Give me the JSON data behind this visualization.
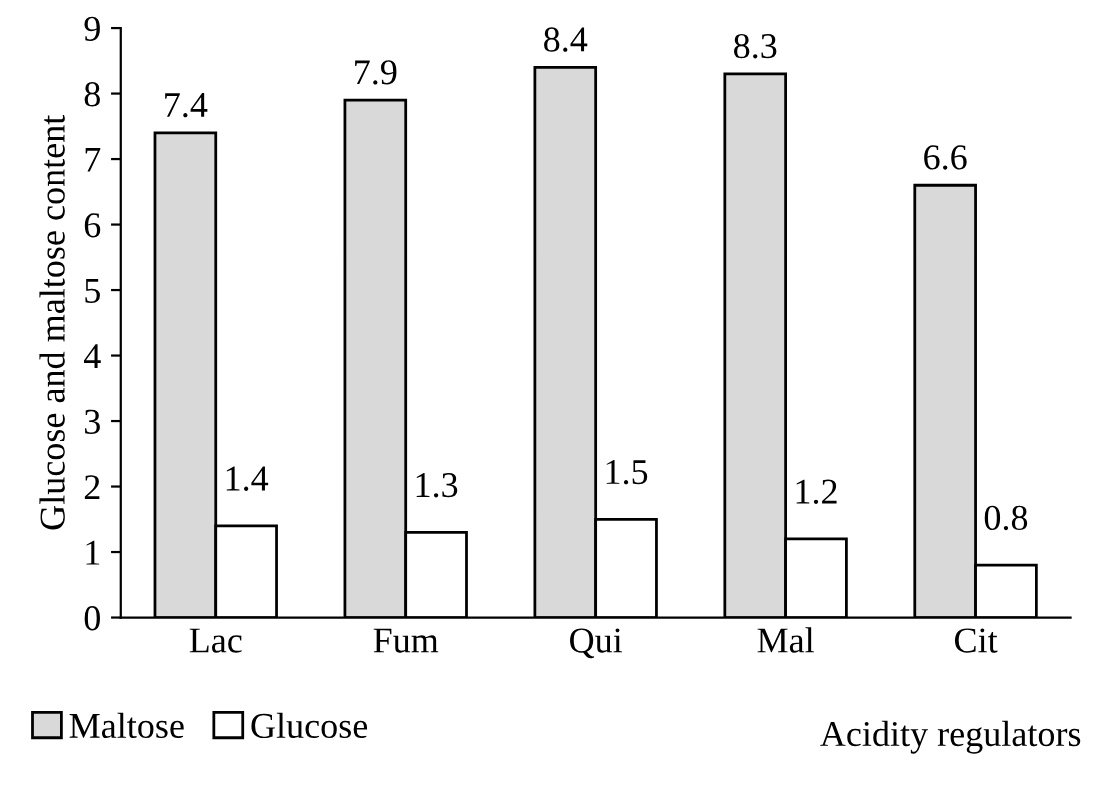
{
  "chart_data": {
    "type": "bar",
    "xlabel": "Acidity regulators",
    "ylabel": "Glucose and maltose content",
    "categories": [
      "Lac",
      "Fum",
      "Qui",
      "Mal",
      "Cit"
    ],
    "series": [
      {
        "name": "Maltose",
        "color": "#d9d9d9",
        "values": [
          7.4,
          7.9,
          8.4,
          8.3,
          6.6
        ]
      },
      {
        "name": "Glucose",
        "color": "#ffffff",
        "values": [
          1.4,
          1.3,
          1.5,
          1.2,
          0.8
        ]
      }
    ],
    "ylim": [
      0,
      9
    ],
    "yticks": [
      0,
      1,
      2,
      3,
      4,
      5,
      6,
      7,
      8,
      9
    ],
    "data_labels": true,
    "grid": false,
    "legend": "bottom left"
  }
}
